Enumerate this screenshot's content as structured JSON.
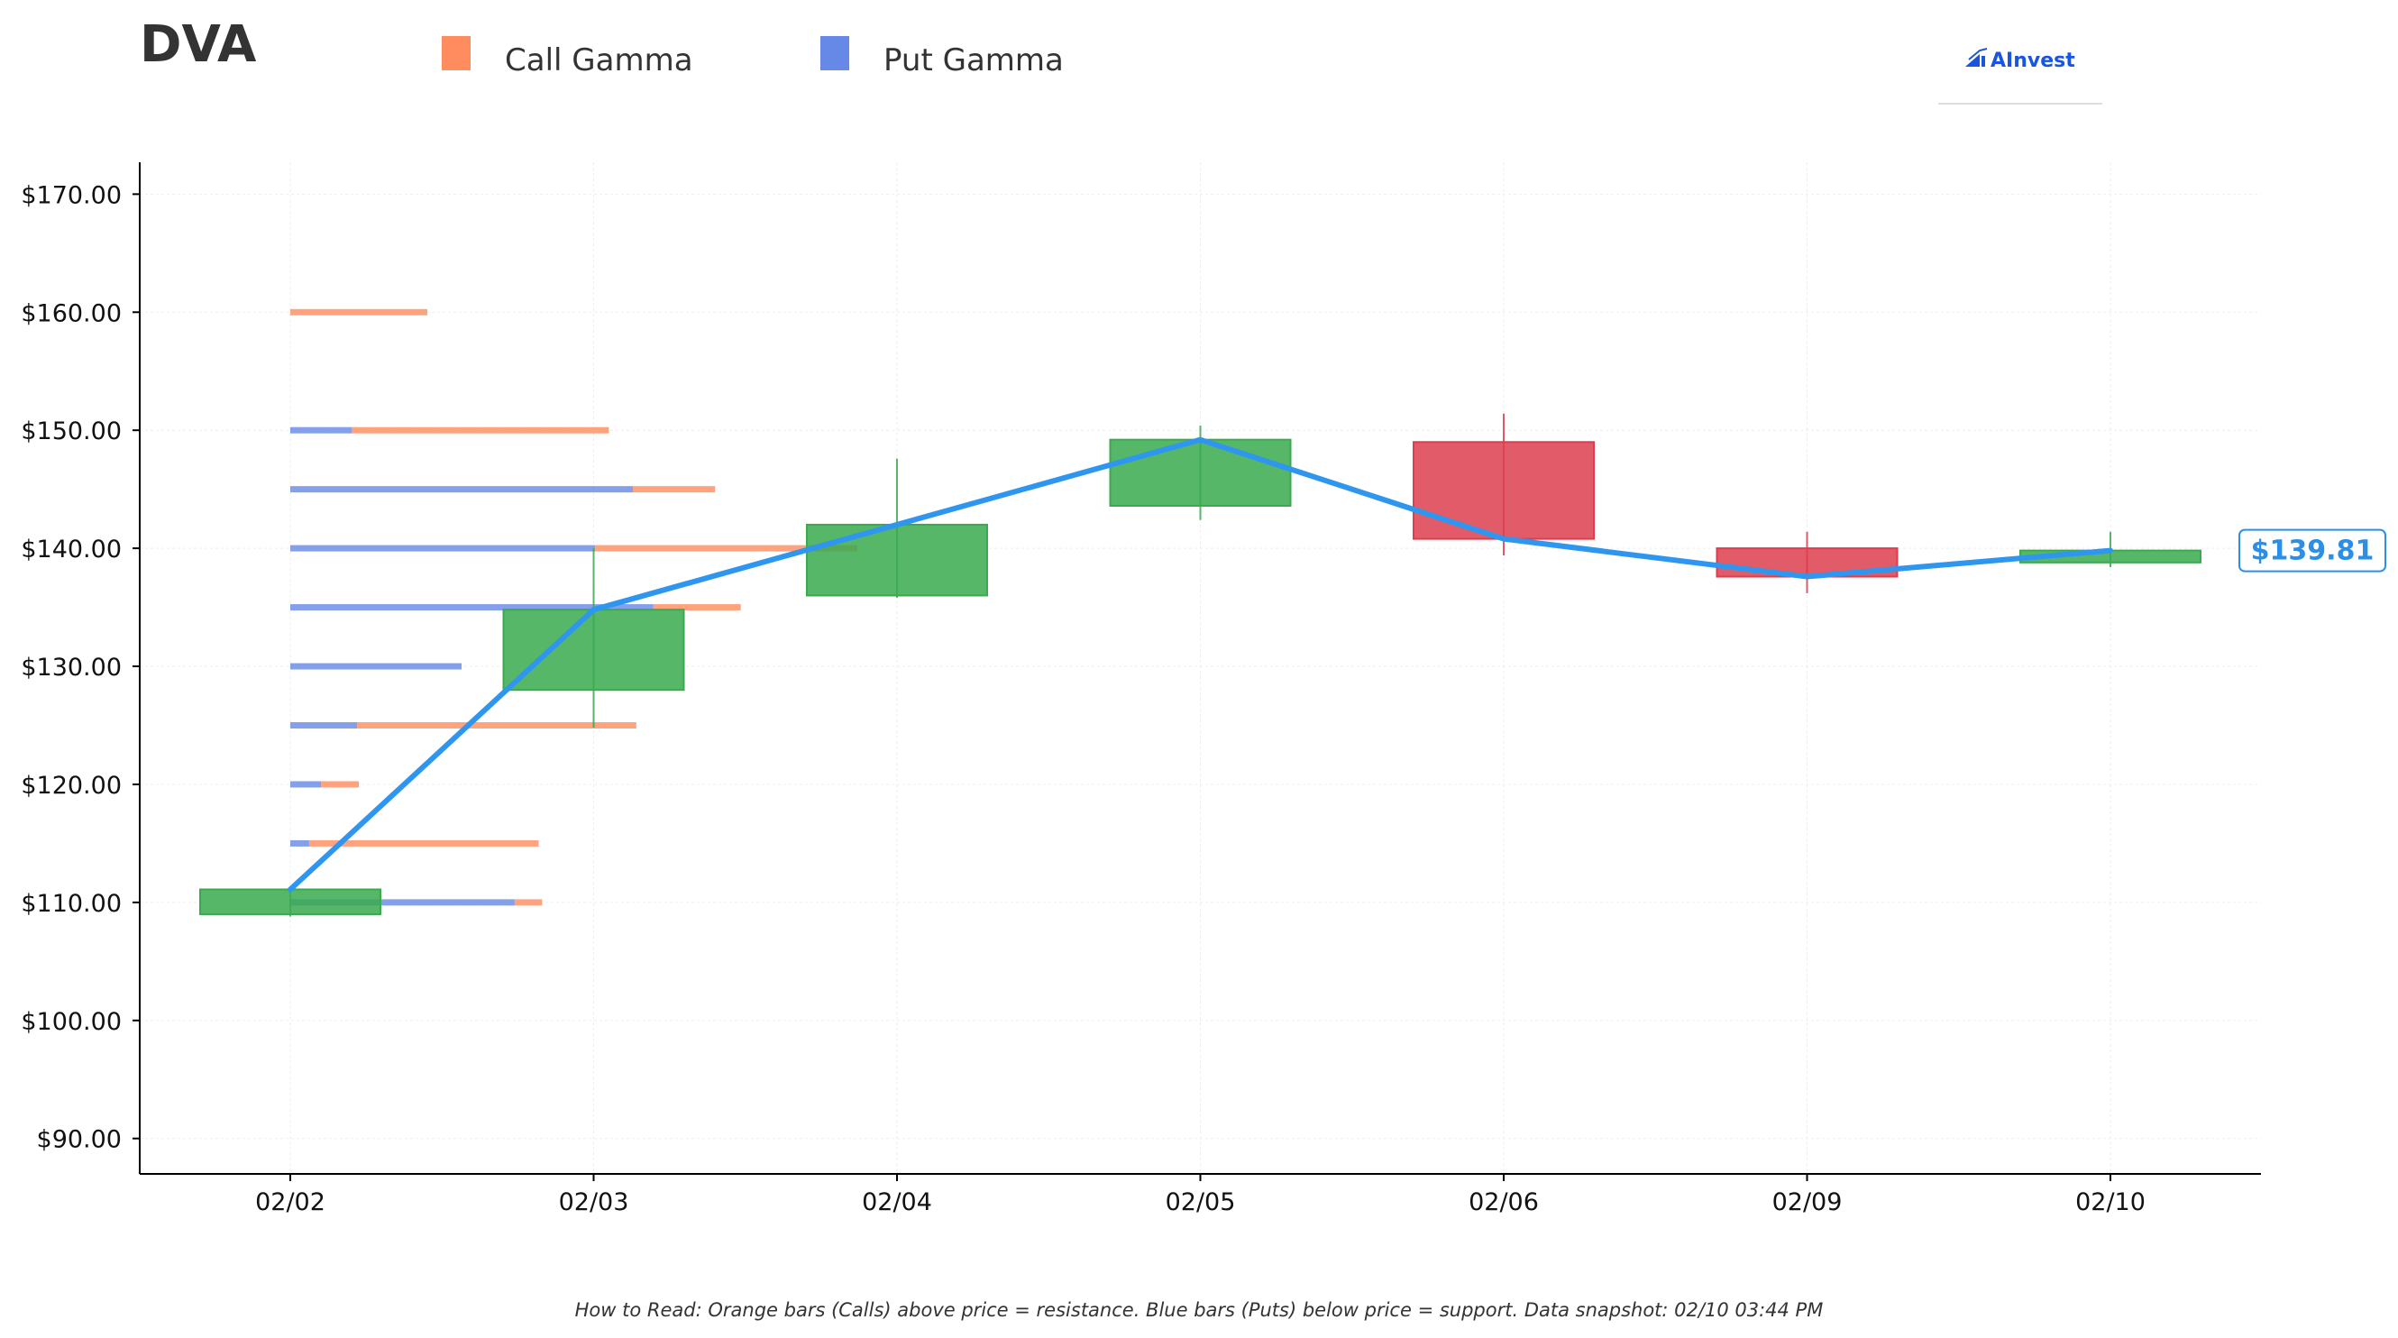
{
  "ticker": "DVA",
  "legend": {
    "call_label": "Call Gamma",
    "put_label": "Put Gamma"
  },
  "logo": {
    "text": "AInvest",
    "icon": "ainvest-logo-icon"
  },
  "footnote": "How to Read: Orange bars (Calls) above price = resistance. Blue bars (Puts) below price = support. Data snapshot: 02/10 03:44 PM",
  "last_price_label": "$139.81",
  "colors": {
    "call": "#ff8c5f",
    "put": "#6688e6",
    "up_candle": "#3aaa4f",
    "down_candle": "#dc3e4e",
    "price_line": "#2f96f0",
    "text": "#333333"
  },
  "chart_data": {
    "type": "candlestick",
    "categories": [
      "02/02",
      "02/03",
      "02/04",
      "02/05",
      "02/06",
      "02/09",
      "02/10"
    ],
    "candles": [
      {
        "date": "02/02",
        "open": 109.0,
        "close": 111.1,
        "high": 111.1,
        "low": 108.8
      },
      {
        "date": "02/03",
        "open": 128.0,
        "close": 134.8,
        "high": 140.0,
        "low": 124.8
      },
      {
        "date": "02/04",
        "open": 136.0,
        "close": 142.0,
        "high": 147.6,
        "low": 135.8
      },
      {
        "date": "02/05",
        "open": 143.6,
        "close": 149.2,
        "high": 150.4,
        "low": 142.4
      },
      {
        "date": "02/06",
        "open": 149.0,
        "close": 140.8,
        "high": 151.4,
        "low": 139.4
      },
      {
        "date": "02/09",
        "open": 140.0,
        "close": 137.6,
        "high": 141.4,
        "low": 136.2
      },
      {
        "date": "02/10",
        "open": 138.8,
        "close": 139.81,
        "high": 141.4,
        "low": 138.4
      }
    ],
    "price_line": [
      111.1,
      134.8,
      142.0,
      149.2,
      140.8,
      137.6,
      139.81
    ],
    "gamma_levels": [
      {
        "strike": 160,
        "put": 0.0,
        "call": 0.8
      },
      {
        "strike": 150,
        "put": 0.36,
        "call": 1.5
      },
      {
        "strike": 145,
        "put": 2.0,
        "call": 0.48
      },
      {
        "strike": 140,
        "put": 1.78,
        "call": 1.53
      },
      {
        "strike": 135,
        "put": 2.12,
        "call": 0.51
      },
      {
        "strike": 130,
        "put": 1.0,
        "call": 0.0
      },
      {
        "strike": 125,
        "put": 0.39,
        "call": 1.63
      },
      {
        "strike": 120,
        "put": 0.18,
        "call": 0.22
      },
      {
        "strike": 115,
        "put": 0.11,
        "call": 1.34
      },
      {
        "strike": 110,
        "put": 1.31,
        "call": 0.16
      }
    ],
    "ylim": [
      87,
      172.7
    ],
    "yticks": [
      90,
      100,
      110,
      120,
      130,
      140,
      150,
      160,
      170
    ],
    "ytick_labels": [
      "$90.00",
      "$100.00",
      "$110.00",
      "$120.00",
      "$130.00",
      "$140.00",
      "$150.00",
      "$160.00",
      "$170.00"
    ],
    "grid": true,
    "legend_position": "top-left",
    "title": "",
    "xlabel": "",
    "ylabel": ""
  }
}
